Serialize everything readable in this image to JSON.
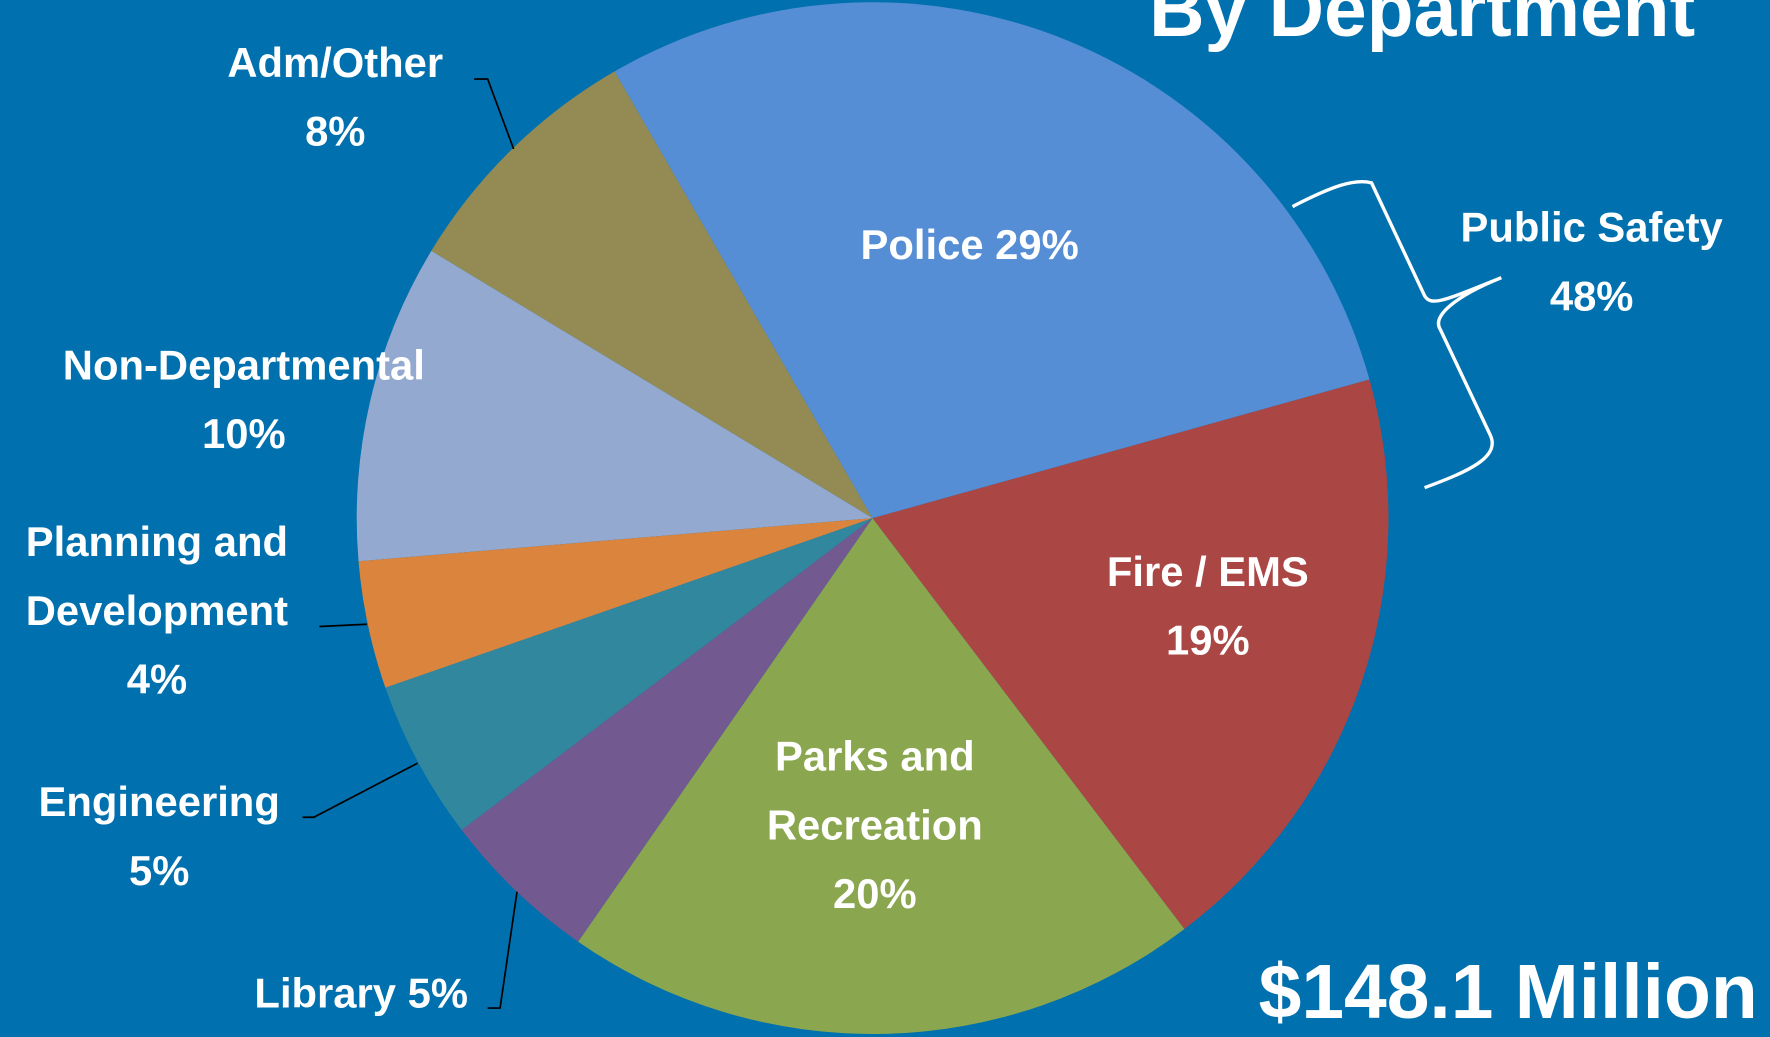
{
  "chart_data": {
    "type": "pie",
    "title": "By Department",
    "categories": [
      "Police",
      "Fire / EMS",
      "Parks and Recreation",
      "Library",
      "Engineering",
      "Planning and Development",
      "Non-Departmental",
      "Adm/Other"
    ],
    "values": [
      29,
      19,
      20,
      5,
      5,
      4,
      10,
      8
    ],
    "value_labels": [
      "29%",
      "19%",
      "20%",
      "5%",
      "5%",
      "4%",
      "10%",
      "8%"
    ],
    "colors": [
      "#558ed5",
      "#aa4644",
      "#8aa64e",
      "#725990",
      "#31879e",
      "#db843d",
      "#93a9cf",
      "#948b54"
    ],
    "annotations": [
      {
        "text": "Public Safety",
        "value": 48,
        "value_label": "48%"
      },
      {
        "text": "$148.1 Million"
      }
    ]
  }
}
